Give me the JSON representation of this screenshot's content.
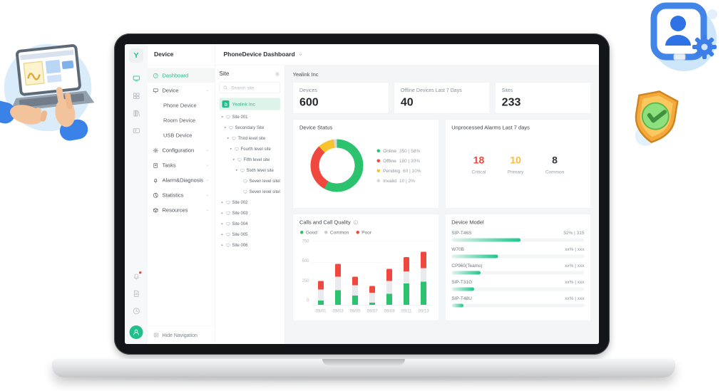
{
  "app": {
    "rail": {
      "logo_letter": "Y",
      "top": [
        {
          "name": "devices",
          "icon": "device",
          "active": true
        },
        {
          "name": "apps-grid",
          "icon": "grid"
        },
        {
          "name": "library",
          "icon": "library"
        },
        {
          "name": "monitor",
          "icon": "monitor2"
        }
      ],
      "bottom": [
        {
          "name": "notifications",
          "icon": "bell",
          "badge": true
        },
        {
          "name": "feedback",
          "icon": "file"
        },
        {
          "name": "history",
          "icon": "clock"
        }
      ]
    },
    "nav_title": "Device",
    "topbar": {
      "title": "PhoneDevice Dashboard"
    },
    "sidebar": {
      "items": [
        {
          "label": "Dashboard",
          "icon": "dashboard",
          "active": true
        },
        {
          "label": "Device",
          "icon": "device",
          "expandable": true,
          "expanded": true
        },
        {
          "label": "Phone Device",
          "child": true
        },
        {
          "label": "Room Device",
          "child": true
        },
        {
          "label": "USB Device",
          "child": true
        },
        {
          "label": "Configuration",
          "icon": "gear",
          "expandable": true
        },
        {
          "label": "Tasks",
          "icon": "tasks",
          "expandable": true
        },
        {
          "label": "Alarm&Diagnosis",
          "icon": "alarm",
          "expandable": true
        },
        {
          "label": "Statistics",
          "icon": "stats",
          "expandable": true
        },
        {
          "label": "Resources",
          "icon": "resources",
          "expandable": true
        }
      ],
      "hide_nav": "Hide Navigation"
    },
    "site_panel": {
      "title": "Site",
      "search_placeholder": "Search site",
      "root": "Yealink Inc",
      "tree": [
        {
          "label": "Site 001",
          "depth": 0,
          "expanded": true
        },
        {
          "label": "Secondary Site",
          "depth": 1,
          "expanded": true
        },
        {
          "label": "Third level site",
          "depth": 2,
          "expanded": true
        },
        {
          "label": "Fourth level site",
          "depth": 3,
          "expanded": true
        },
        {
          "label": "Fifth level site",
          "depth": 4,
          "expanded": true
        },
        {
          "label": "Sixth level site",
          "depth": 5,
          "expanded": true
        },
        {
          "label": "Seven level site01",
          "depth": 6,
          "leaf": true
        },
        {
          "label": "Seven level site02",
          "depth": 6,
          "leaf": true
        },
        {
          "label": "Site 002",
          "depth": 0,
          "expanded": false
        },
        {
          "label": "Site 003",
          "depth": 0,
          "expanded": false
        },
        {
          "label": "Site 004",
          "depth": 0,
          "expanded": false
        },
        {
          "label": "Site 005",
          "depth": 0,
          "expanded": false
        },
        {
          "label": "Site 006",
          "depth": 0,
          "expanded": false
        }
      ]
    },
    "dashboard": {
      "org": "Yealink Inc",
      "stats": [
        {
          "label": "Devices",
          "value": "600"
        },
        {
          "label": "Offline Devices Last 7 Days",
          "value": "40"
        },
        {
          "label": "Sites",
          "value": "233"
        }
      ],
      "alarms": {
        "title": "Unprocessed Alarms Last 7 days",
        "items": [
          {
            "value": "18",
            "label": "Critical",
            "color": "#f0483e"
          },
          {
            "value": "10",
            "label": "Primary",
            "color": "#f6bd42"
          },
          {
            "value": "8",
            "label": "Common",
            "color": "#33383d"
          }
        ]
      }
    },
    "colors": {
      "accent_green": "#21bf8e",
      "chart_green": "#2dc26e",
      "chart_red": "#f0483e",
      "chart_yellow": "#f7c32f",
      "chart_gray": "#d8d8d8"
    }
  },
  "chart_data": [
    {
      "id": "device_status",
      "type": "pie",
      "donut": true,
      "title": "Device Status",
      "legend_position": "right",
      "segments": [
        {
          "label": "Online",
          "value": 350,
          "pct": 58,
          "display": "350 | 58%",
          "color": "#2dc26e"
        },
        {
          "label": "Offline",
          "value": 180,
          "pct": 30,
          "display": "180 | 30%",
          "color": "#f0483e"
        },
        {
          "label": "Pending",
          "value": 60,
          "pct": 10,
          "display": "60 | 10%",
          "color": "#f7c32f"
        },
        {
          "label": "Invalid",
          "value": 10,
          "pct": 2,
          "display": "10 | 2%",
          "color": "#d8d8d8"
        }
      ]
    },
    {
      "id": "calls",
      "type": "bar",
      "stacked": true,
      "title": "Calls and Call Quality",
      "legend_position": "top",
      "grid": true,
      "x": [
        "09/01",
        "09/03",
        "09/05",
        "09/07",
        "09/09",
        "09/11",
        "09/13"
      ],
      "ylim": [
        0,
        750
      ],
      "yticks": [
        0,
        250,
        500,
        750
      ],
      "series": [
        {
          "name": "Good",
          "color": "#2dc26e",
          "values": [
            50,
            170,
            110,
            25,
            130,
            250,
            270
          ]
        },
        {
          "name": "Common",
          "color": "#e8eaed",
          "dot_color": "#c9cdd2",
          "values": [
            130,
            160,
            120,
            115,
            150,
            140,
            160
          ]
        },
        {
          "name": "Poor",
          "color": "#f0483e",
          "values": [
            100,
            150,
            100,
            80,
            140,
            170,
            190
          ]
        }
      ]
    },
    {
      "id": "device_model",
      "type": "bar",
      "orientation": "horizontal",
      "title": "Device Model",
      "rows": [
        {
          "model": "SIP-T46S",
          "display": "52% | 315",
          "pct": 52
        },
        {
          "model": "W70B",
          "display": "xx% | xxx",
          "pct": 35
        },
        {
          "model": "CP960(Teams)",
          "display": "xx% | xxx",
          "pct": 22
        },
        {
          "model": "SIP-T31G",
          "display": "xx% | xxx",
          "pct": 17
        },
        {
          "model": "SIP-T48U",
          "display": "xx% | xxx",
          "pct": 9
        }
      ]
    }
  ]
}
